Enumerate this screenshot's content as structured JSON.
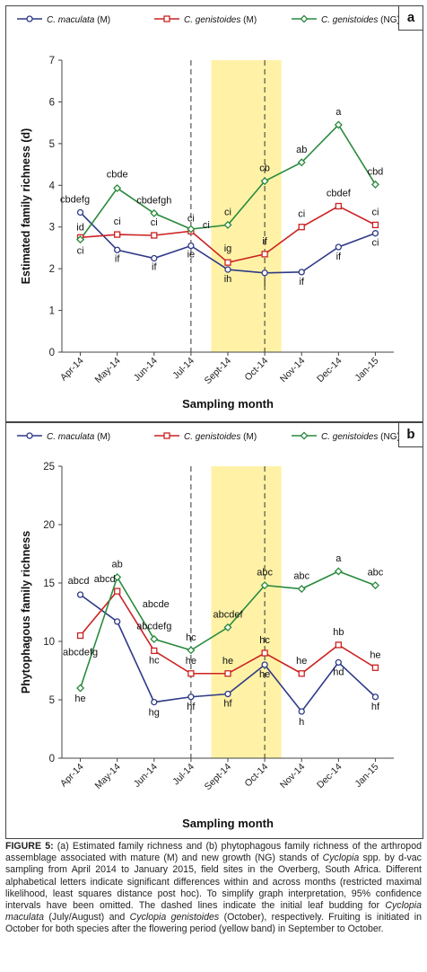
{
  "colors": {
    "maculata": "#2e3a87",
    "genistoides_m": "#cc2222",
    "genistoides_ng": "#2a8a3e",
    "flowering_band": "#fff2a6",
    "axis": "#444444"
  },
  "panel_a": {
    "label": "a"
  },
  "panel_b": {
    "label": "b"
  },
  "caption": {
    "figure_label": "FIGURE 5:",
    "part1": " (a) Estimated family richness and (b) phytophagous family richness of the arthropod assemblage associated with mature (M) and new growth (NG) stands of ",
    "genus1": "Cyclopia",
    "part2": " spp. by d-vac sampling from April 2014 to January 2015, field sites in the Overberg, South Africa. Different alphabetical letters indicate significant differences within and across months (restricted maximal likelihood, least squares distance post hoc). To simplify graph interpretation, 95% confidence intervals have been omitted. The dashed lines indicate the initial leaf budding for ",
    "species1": "Cyclopia maculata",
    "part3": " (July/August) and ",
    "species2": "Cyclopia genistoides",
    "part4": " (October), respectively. Fruiting is initiated in October for both species after the flowering period (yellow band) in September to October."
  },
  "chart_data": [
    {
      "type": "line",
      "panel": "a",
      "ylabel": "Estimated family richness (d)",
      "xlabel": "Sampling month",
      "categories": [
        "Apr-14",
        "May-14",
        "Jun-14",
        "Jul-14",
        "Sept-14",
        "Oct-14",
        "Nov-14",
        "Dec-14",
        "Jan-15"
      ],
      "ylim": [
        0,
        7
      ],
      "yticks": [
        0,
        1,
        2,
        3,
        4,
        5,
        6,
        7
      ],
      "flowering_band": [
        "Sept-14",
        "Oct-14"
      ],
      "dashed_lines": [
        "Jul-14",
        "Oct-14"
      ],
      "legend": "top",
      "series": [
        {
          "name": "C. maculata",
          "suffix": " (M)",
          "marker": "circle",
          "values": [
            3.35,
            2.45,
            2.25,
            2.55,
            1.98,
            1.9,
            1.92,
            2.52,
            2.85
          ],
          "letters": [
            "",
            "if",
            "if",
            "ie",
            "ih",
            "i",
            "if",
            "if",
            "ci"
          ]
        },
        {
          "name": "C. genistoides",
          "suffix": " (M)",
          "marker": "square",
          "values": [
            2.75,
            2.82,
            2.8,
            2.9,
            2.15,
            2.35,
            3.0,
            3.5,
            3.05
          ],
          "letters": [
            "id",
            "ci",
            "ci",
            "ci",
            "ig",
            "if",
            "ci",
            "cbdef",
            "ci"
          ]
        },
        {
          "name": "C. genistoides",
          "suffix": " (NG)",
          "marker": "diamond",
          "values": [
            2.7,
            3.93,
            3.33,
            2.95,
            3.05,
            4.1,
            4.55,
            5.45,
            4.02
          ],
          "letters": [
            "ci",
            "cbde",
            "cbdefgh",
            "ci",
            "ci",
            "cb",
            "ab",
            "a",
            "cbd"
          ]
        }
      ],
      "extra_labels": [
        {
          "text": "cbdefg",
          "category": "Apr-14",
          "value": 3.35
        }
      ]
    },
    {
      "type": "line",
      "panel": "b",
      "ylabel": "Phytophagous family richness",
      "xlabel": "Sampling month",
      "categories": [
        "Apr-14",
        "May-14",
        "Jun-14",
        "Jul-14",
        "Sept-14",
        "Oct-14",
        "Nov-14",
        "Dec-14",
        "Jan-15"
      ],
      "ylim": [
        0,
        25
      ],
      "yticks": [
        0,
        5,
        10,
        15,
        20,
        25
      ],
      "flowering_band": [
        "Sept-14",
        "Oct-14"
      ],
      "dashed_lines": [
        "Jul-14",
        "Oct-14"
      ],
      "legend": "top",
      "series": [
        {
          "name": "C. maculata",
          "suffix": " (M)",
          "marker": "circle",
          "values": [
            14.0,
            11.7,
            4.8,
            5.25,
            5.5,
            8.0,
            4.0,
            8.2,
            5.25
          ],
          "letters": [
            "abcd",
            "",
            "hg",
            "hf",
            "hf",
            "he",
            "h",
            "hd",
            "hf"
          ]
        },
        {
          "name": "C. genistoides",
          "suffix": " (M)",
          "marker": "square",
          "values": [
            10.5,
            14.3,
            9.2,
            7.25,
            7.25,
            9.0,
            7.25,
            9.7,
            7.75
          ],
          "letters": [
            "abcdefg",
            "abcd",
            "hc",
            "he",
            "he",
            "hc",
            "he",
            "hb",
            "he"
          ]
        },
        {
          "name": "C. genistoides",
          "suffix": " (NG)",
          "marker": "diamond",
          "values": [
            6.0,
            15.5,
            10.2,
            9.25,
            11.2,
            14.8,
            14.5,
            16.0,
            14.8
          ],
          "letters": [
            "he",
            "ab",
            "abcdefg",
            "hc",
            "abcdef",
            "abc",
            "abc",
            "a",
            "abc"
          ]
        }
      ],
      "extra_labels": [
        {
          "text": "abcde",
          "category": "Jun-14",
          "value": 12.25
        }
      ]
    }
  ]
}
